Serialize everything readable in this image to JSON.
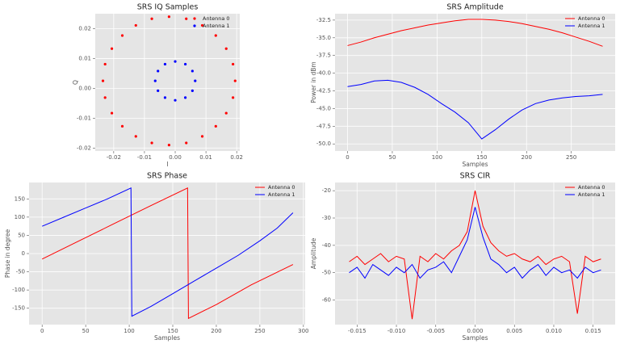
{
  "chart_data": [
    {
      "type": "scatter",
      "title": "SRS IQ Samples",
      "xlabel": "I",
      "ylabel": "Q",
      "grid": true,
      "legend": "upper right",
      "xlim": [
        -0.026,
        0.021
      ],
      "ylim": [
        -0.021,
        0.025
      ],
      "xticks": [
        -0.02,
        -0.01,
        {
          "value": 0,
          "label": "0.00"
        },
        0.01,
        0.02
      ],
      "yticks": [
        -0.02,
        -0.01,
        {
          "value": 0,
          "label": "0.00"
        },
        0.01,
        0.02
      ],
      "series": [
        {
          "name": "Antenna 0",
          "color": "#ff0000",
          "x": [
            0.0195,
            0.0188,
            0.0166,
            0.0132,
            0.0088,
            0.0036,
            -0.002,
            -0.0076,
            -0.0128,
            -0.0172,
            -0.0206,
            -0.0228,
            -0.0235,
            -0.0228,
            -0.0206,
            -0.0172,
            -0.0128,
            -0.0076,
            -0.002,
            0.0036,
            0.0088,
            0.0132,
            0.0166,
            0.0188
          ],
          "values": [
            0.0025,
            0.0081,
            0.0133,
            0.0177,
            0.0211,
            0.0233,
            0.024,
            0.0233,
            0.0211,
            0.0177,
            0.0133,
            0.0081,
            0.0025,
            -0.0031,
            -0.0083,
            -0.0127,
            -0.0161,
            -0.0183,
            -0.019,
            -0.0183,
            -0.0161,
            -0.0127,
            -0.0083,
            -0.0031
          ]
        },
        {
          "name": "Antenna 1",
          "color": "#0000ff",
          "x": [
            0.0065,
            0.0056,
            0.0033,
            0,
            -0.0033,
            -0.0056,
            -0.0065,
            -0.0056,
            -0.0033,
            0,
            0.0033,
            0.0056
          ],
          "values": [
            0.0025,
            0.0058,
            0.0081,
            0.009,
            0.0081,
            0.0058,
            0.0025,
            -0.0008,
            -0.0031,
            -0.004,
            -0.0031,
            -0.0008
          ]
        }
      ]
    },
    {
      "type": "line",
      "title": "SRS Amplitude",
      "xlabel": "Samples",
      "ylabel": "Power in dBm",
      "grid": true,
      "legend": "upper right",
      "xlim": [
        -14,
        299
      ],
      "ylim": [
        -51,
        -31.6
      ],
      "xticks": [
        0,
        50,
        100,
        150,
        200,
        250
      ],
      "yticks": [
        -32.5,
        {
          "value": -35,
          "label": "-35.0"
        },
        -37.5,
        {
          "value": -40,
          "label": "-40.0"
        },
        -42.5,
        {
          "value": -45,
          "label": "-45.0"
        },
        -47.5,
        {
          "value": -50,
          "label": "-50.0"
        }
      ],
      "series": [
        {
          "name": "Antenna 0",
          "color": "#ff0000",
          "x": [
            0,
            15,
            30,
            45,
            60,
            75,
            90,
            105,
            120,
            135,
            150,
            165,
            180,
            195,
            210,
            225,
            240,
            255,
            270,
            285
          ],
          "values": [
            -36.1,
            -35.6,
            -35.0,
            -34.5,
            -34.0,
            -33.6,
            -33.2,
            -32.9,
            -32.6,
            -32.4,
            -32.4,
            -32.5,
            -32.7,
            -33.0,
            -33.4,
            -33.8,
            -34.3,
            -34.9,
            -35.5,
            -36.2
          ]
        },
        {
          "name": "Antenna 1",
          "color": "#0000ff",
          "x": [
            0,
            15,
            30,
            45,
            60,
            75,
            90,
            105,
            120,
            135,
            150,
            165,
            180,
            195,
            210,
            225,
            240,
            255,
            270,
            285
          ],
          "values": [
            -41.9,
            -41.6,
            -41.1,
            -41.0,
            -41.3,
            -42.0,
            -43.0,
            -44.3,
            -45.5,
            -47.0,
            -49.3,
            -48.0,
            -46.5,
            -45.2,
            -44.3,
            -43.8,
            -43.5,
            -43.3,
            -43.2,
            -43.0
          ]
        }
      ]
    },
    {
      "type": "line",
      "title": "SRS Phase",
      "xlabel": "Samples",
      "ylabel": "Phase in degree",
      "grid": true,
      "legend": "upper right",
      "xlim": [
        -15,
        302
      ],
      "ylim": [
        -195,
        195
      ],
      "xticks": [
        0,
        50,
        100,
        150,
        200,
        250,
        300
      ],
      "yticks": [
        -150,
        -100,
        -50,
        0,
        50,
        100,
        150
      ],
      "series": [
        {
          "name": "Antenna 0",
          "color": "#ff0000",
          "x": [
            0,
            40,
            80,
            120,
            167,
            168,
            200,
            240,
            288
          ],
          "values": [
            -15,
            32,
            79,
            126,
            180,
            -178,
            -140,
            -86,
            -30
          ]
        },
        {
          "name": "Antenna 1",
          "color": "#0000ff",
          "x": [
            0,
            25,
            50,
            75,
            102,
            103,
            125,
            150,
            175,
            200,
            225,
            250,
            270,
            288
          ],
          "values": [
            75,
            100,
            125,
            150,
            180,
            -172,
            -145,
            -110,
            -75,
            -40,
            -5,
            35,
            70,
            112
          ]
        }
      ]
    },
    {
      "type": "line",
      "title": "SRS CIR",
      "xlabel": "Samples",
      "ylabel": "Amplitude",
      "grid": true,
      "legend": "upper right",
      "xlim": [
        -0.0178,
        0.0178
      ],
      "ylim": [
        -69,
        -17
      ],
      "xticks": [
        -0.015,
        {
          "value": -0.01,
          "label": "-0.010"
        },
        -0.005,
        {
          "value": 0,
          "label": "0.000"
        },
        0.005,
        {
          "value": 0.01,
          "label": "0.010"
        },
        0.015
      ],
      "yticks": [
        -60,
        -50,
        -40,
        -30,
        -20
      ],
      "series": [
        {
          "name": "Antenna 0",
          "color": "#ff0000",
          "x": [
            -0.016,
            -0.015,
            -0.014,
            -0.013,
            -0.012,
            -0.011,
            -0.01,
            -0.009,
            -0.008,
            -0.007,
            -0.006,
            -0.005,
            -0.004,
            -0.003,
            -0.002,
            -0.001,
            0,
            0.001,
            0.002,
            0.003,
            0.004,
            0.005,
            0.006,
            0.007,
            0.008,
            0.009,
            0.01,
            0.011,
            0.012,
            0.013,
            0.014,
            0.015,
            0.016
          ],
          "values": [
            -46,
            -44,
            -47,
            -45,
            -43,
            -46,
            -44,
            -45,
            -67,
            -44,
            -46,
            -43,
            -45,
            -42,
            -40,
            -35,
            -20,
            -33,
            -39,
            -42,
            -44,
            -43,
            -45,
            -46,
            -44,
            -47,
            -45,
            -44,
            -46,
            -65,
            -44,
            -46,
            -45
          ]
        },
        {
          "name": "Antenna 1",
          "color": "#0000ff",
          "x": [
            -0.016,
            -0.015,
            -0.014,
            -0.013,
            -0.012,
            -0.011,
            -0.01,
            -0.009,
            -0.008,
            -0.007,
            -0.006,
            -0.005,
            -0.004,
            -0.003,
            -0.002,
            -0.001,
            0,
            0.001,
            0.002,
            0.003,
            0.004,
            0.005,
            0.006,
            0.007,
            0.008,
            0.009,
            0.01,
            0.011,
            0.012,
            0.013,
            0.014,
            0.015,
            0.016
          ],
          "values": [
            -50,
            -48,
            -52,
            -47,
            -49,
            -51,
            -48,
            -50,
            -47,
            -52,
            -49,
            -48,
            -46,
            -50,
            -44,
            -38,
            -26,
            -37,
            -45,
            -47,
            -50,
            -48,
            -52,
            -49,
            -47,
            -51,
            -48,
            -50,
            -49,
            -52,
            -48,
            -50,
            -49
          ]
        }
      ]
    }
  ]
}
